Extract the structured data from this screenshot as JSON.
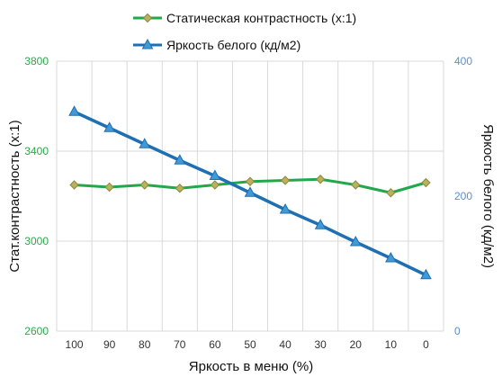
{
  "chart_data": {
    "type": "line",
    "x": [
      100,
      90,
      80,
      70,
      60,
      50,
      40,
      30,
      20,
      10,
      0
    ],
    "xlabel": "Яркость в меню (%)",
    "y1label": "Стат.контрастность  (x:1)",
    "y2label": "Яркость белого (кд/м2)",
    "y1lim": [
      2600,
      3800
    ],
    "y1ticks": [
      "2600",
      "3000",
      "3400",
      "3800"
    ],
    "y2lim": [
      0,
      400
    ],
    "y2ticks": [
      "0",
      "200",
      "400"
    ],
    "series": [
      {
        "name": "Статическая контрастность  (x:1)",
        "axis": "left",
        "color": "#22a84a",
        "marker": "diamond",
        "values": [
          3250,
          3240,
          3250,
          3235,
          3250,
          3265,
          3270,
          3275,
          3250,
          3215,
          3260
        ]
      },
      {
        "name": "Яркость белого (кд/м2)",
        "axis": "right",
        "color": "#1f6fb3",
        "marker": "triangle",
        "values": [
          325,
          301,
          277,
          253,
          230,
          205,
          180,
          157,
          132,
          108,
          83
        ]
      }
    ],
    "grid": true,
    "legend_position": "top"
  }
}
